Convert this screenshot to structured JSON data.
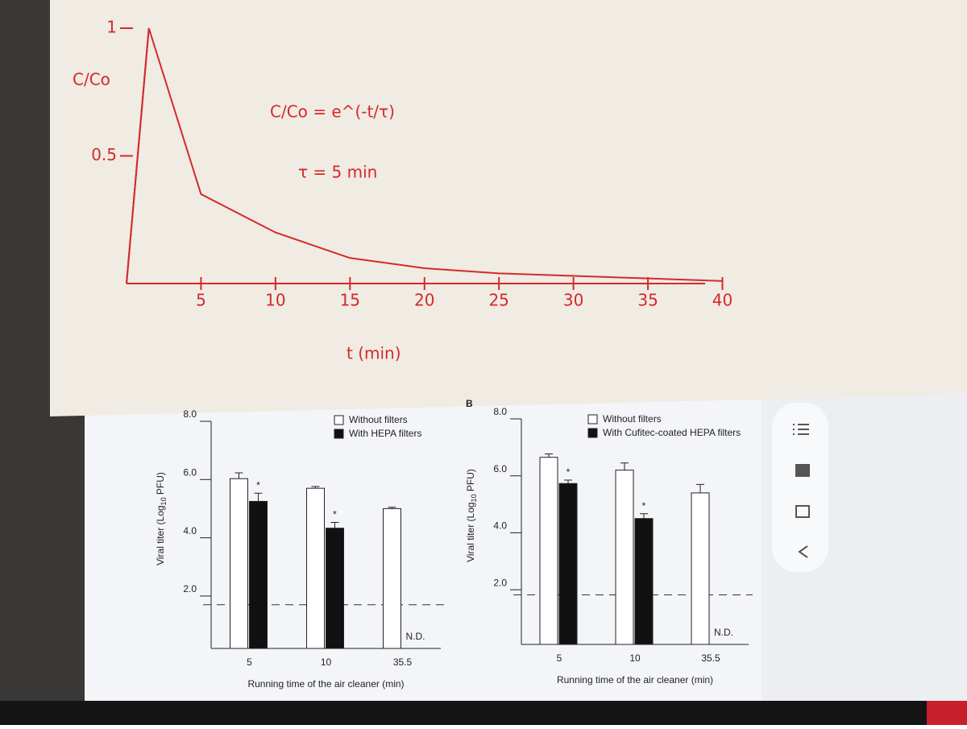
{
  "chart_data": [
    {
      "type": "line",
      "color": "#d42a2a",
      "ylabel": "C/Co",
      "xlabel": "t (min)",
      "annotations": [
        "C/Co = e^(-t/τ)",
        "τ = 5 min"
      ],
      "x": [
        0,
        1.5,
        5,
        10,
        15,
        20,
        25,
        30,
        35,
        40
      ],
      "values": [
        0,
        1,
        0.35,
        0.2,
        0.1,
        0.06,
        0.04,
        0.03,
        0.02,
        0.01
      ],
      "xlim": [
        0,
        41
      ],
      "ylim": [
        0,
        1
      ],
      "xticks": [
        5,
        10,
        15,
        20,
        25,
        30,
        35,
        40
      ],
      "yticks": [
        0.5,
        1
      ]
    },
    {
      "type": "bar",
      "ylabel": [
        "Viral titer (Log",
        "10",
        " PFU)"
      ],
      "xlabel": "Running time of the air cleaner (min)",
      "categories": [
        "5",
        "10",
        "35.5"
      ],
      "series": [
        {
          "name": "Without filters",
          "color": "#ffffff",
          "values": [
            6.03,
            5.7,
            5.0
          ],
          "errors": [
            0.2,
            0.06,
            0.05
          ]
        },
        {
          "name": "With HEPA filters",
          "color": "#111111",
          "values": [
            5.25,
            4.33,
            null
          ],
          "errors": [
            0.28,
            0.2,
            null
          ],
          "marker_labels": [
            "*",
            "*",
            null
          ],
          "missing_label": "N.D."
        }
      ],
      "reference_line": 1.7,
      "ylim": [
        0.2,
        8
      ],
      "yticks": [
        {
          "value": 2,
          "label": "2.0"
        },
        {
          "value": 4,
          "label": "4.0"
        },
        {
          "value": 6,
          "label": "6.0"
        },
        {
          "value": 8,
          "label": "8.0"
        }
      ]
    },
    {
      "type": "bar",
      "panel_label": "B",
      "ylabel": [
        "Viral titer (Log",
        "10",
        " PFU)"
      ],
      "xlabel": "Running time of the air cleaner (min)",
      "categories": [
        "5",
        "10",
        "35.5"
      ],
      "series": [
        {
          "name": "Without filters",
          "color": "#ffffff",
          "values": [
            6.65,
            6.2,
            5.4
          ],
          "errors": [
            0.12,
            0.25,
            0.3
          ]
        },
        {
          "name": "With Cufitec-coated HEPA filters",
          "color": "#111111",
          "values": [
            5.73,
            4.5,
            null
          ],
          "errors": [
            0.12,
            0.17,
            null
          ],
          "marker_labels": [
            "*",
            "*",
            null
          ],
          "missing_label": "N.D."
        }
      ],
      "reference_line": 1.82,
      "ylim": [
        0.08,
        8
      ],
      "yticks": [
        {
          "value": 2,
          "label": "2.0"
        },
        {
          "value": 4,
          "label": "4.0"
        },
        {
          "value": 6,
          "label": "6.0"
        },
        {
          "value": 8,
          "label": "8.0"
        }
      ]
    }
  ]
}
